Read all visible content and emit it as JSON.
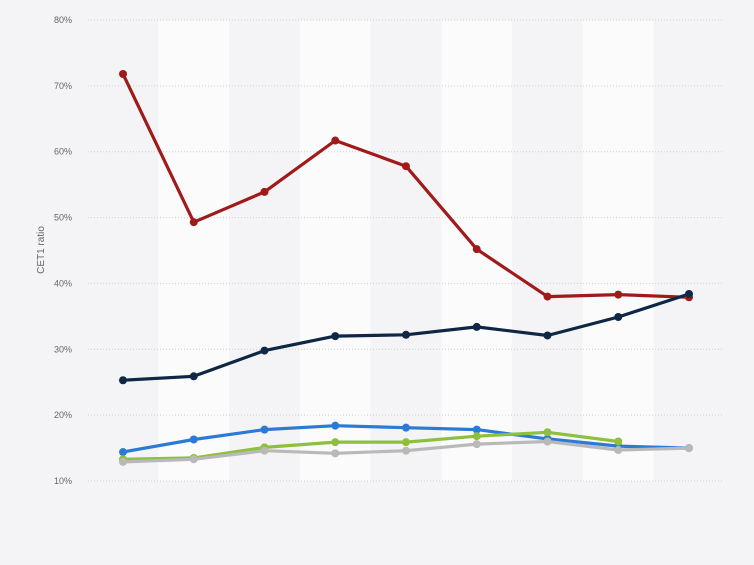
{
  "chart_data": {
    "type": "line",
    "title": "",
    "xlabel": "",
    "ylabel": "CET1 ratio",
    "ylim": [
      10,
      80
    ],
    "yticks": [
      "10%",
      "20%",
      "30%",
      "40%",
      "50%",
      "60%",
      "70%",
      "80%"
    ],
    "grid": true,
    "legend": "none",
    "x": [
      1,
      2,
      3,
      4,
      5,
      6,
      7,
      8,
      9
    ],
    "series": [
      {
        "color": "#a11a1a",
        "values": [
          71.8,
          49.3,
          53.9,
          61.7,
          57.8,
          45.2,
          38.0,
          38.3,
          37.9
        ]
      },
      {
        "color": "#0f2744",
        "values": [
          25.3,
          25.9,
          29.8,
          32.0,
          32.2,
          33.4,
          32.1,
          34.9,
          38.4
        ]
      },
      {
        "color": "#2b7bd6",
        "values": [
          14.4,
          16.3,
          17.8,
          18.4,
          18.1,
          17.8,
          16.4,
          15.3,
          15.0
        ]
      },
      {
        "color": "#8dc03c",
        "values": [
          13.3,
          13.5,
          15.1,
          15.9,
          15.9,
          16.8,
          17.4,
          16.0,
          null
        ]
      },
      {
        "color": "#b9b9b9",
        "values": [
          12.9,
          13.3,
          14.6,
          14.2,
          14.6,
          15.6,
          16.0,
          14.7,
          15.0
        ]
      }
    ]
  }
}
